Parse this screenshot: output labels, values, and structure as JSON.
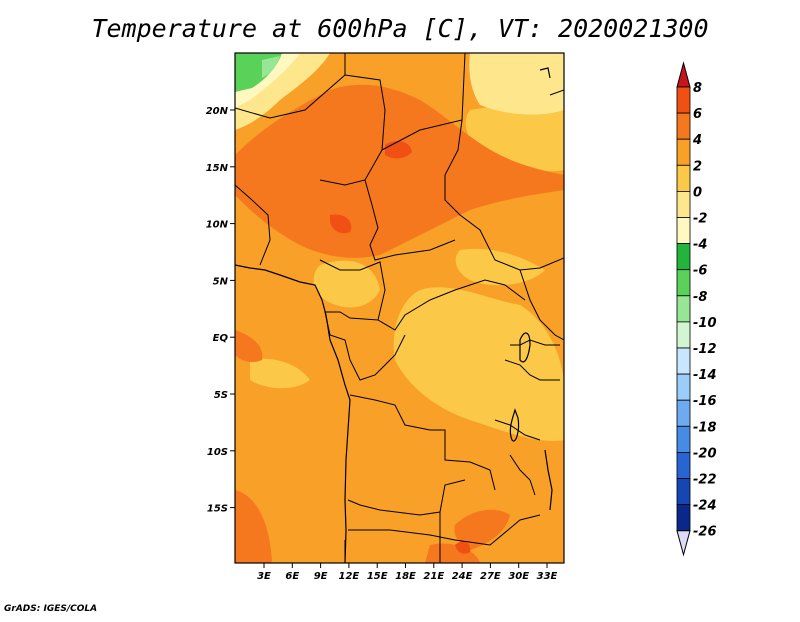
{
  "title": "Temperature at 600hPa [C], VT: 2020021300",
  "credit": "GrADS: IGES/COLA",
  "map": {
    "region": "Central Africa",
    "lat_ticks": [
      "20N",
      "15N",
      "10N",
      "5N",
      "EQ",
      "5S",
      "10S",
      "15S"
    ],
    "lon_ticks": [
      "3E",
      "6E",
      "9E",
      "12E",
      "15E",
      "18E",
      "21E",
      "24E",
      "27E",
      "30E",
      "33E"
    ],
    "lon_range": [
      0,
      35
    ],
    "lat_range": [
      -20,
      24
    ]
  },
  "colorbar": {
    "labels": [
      "8",
      "6",
      "4",
      "2",
      "0",
      "-2",
      "-4",
      "-6",
      "-8",
      "-10",
      "-12",
      "-14",
      "-16",
      "-18",
      "-20",
      "-22",
      "-24",
      "-26"
    ],
    "colors": [
      "#e61e0a",
      "#f05014",
      "#f5781e",
      "#f8a028",
      "#fbc848",
      "#fde68c",
      "#fff8c0",
      "#23b43c",
      "#5ad25a",
      "#96e696",
      "#d2f5d2",
      "#c8e6ff",
      "#9ccdfa",
      "#6eaaf0",
      "#468ce6",
      "#2864d2",
      "#1446b4",
      "#0a288c",
      "#0a0a64"
    ],
    "over_color": "#c8141e",
    "under_color": "#dcdcf8"
  }
}
